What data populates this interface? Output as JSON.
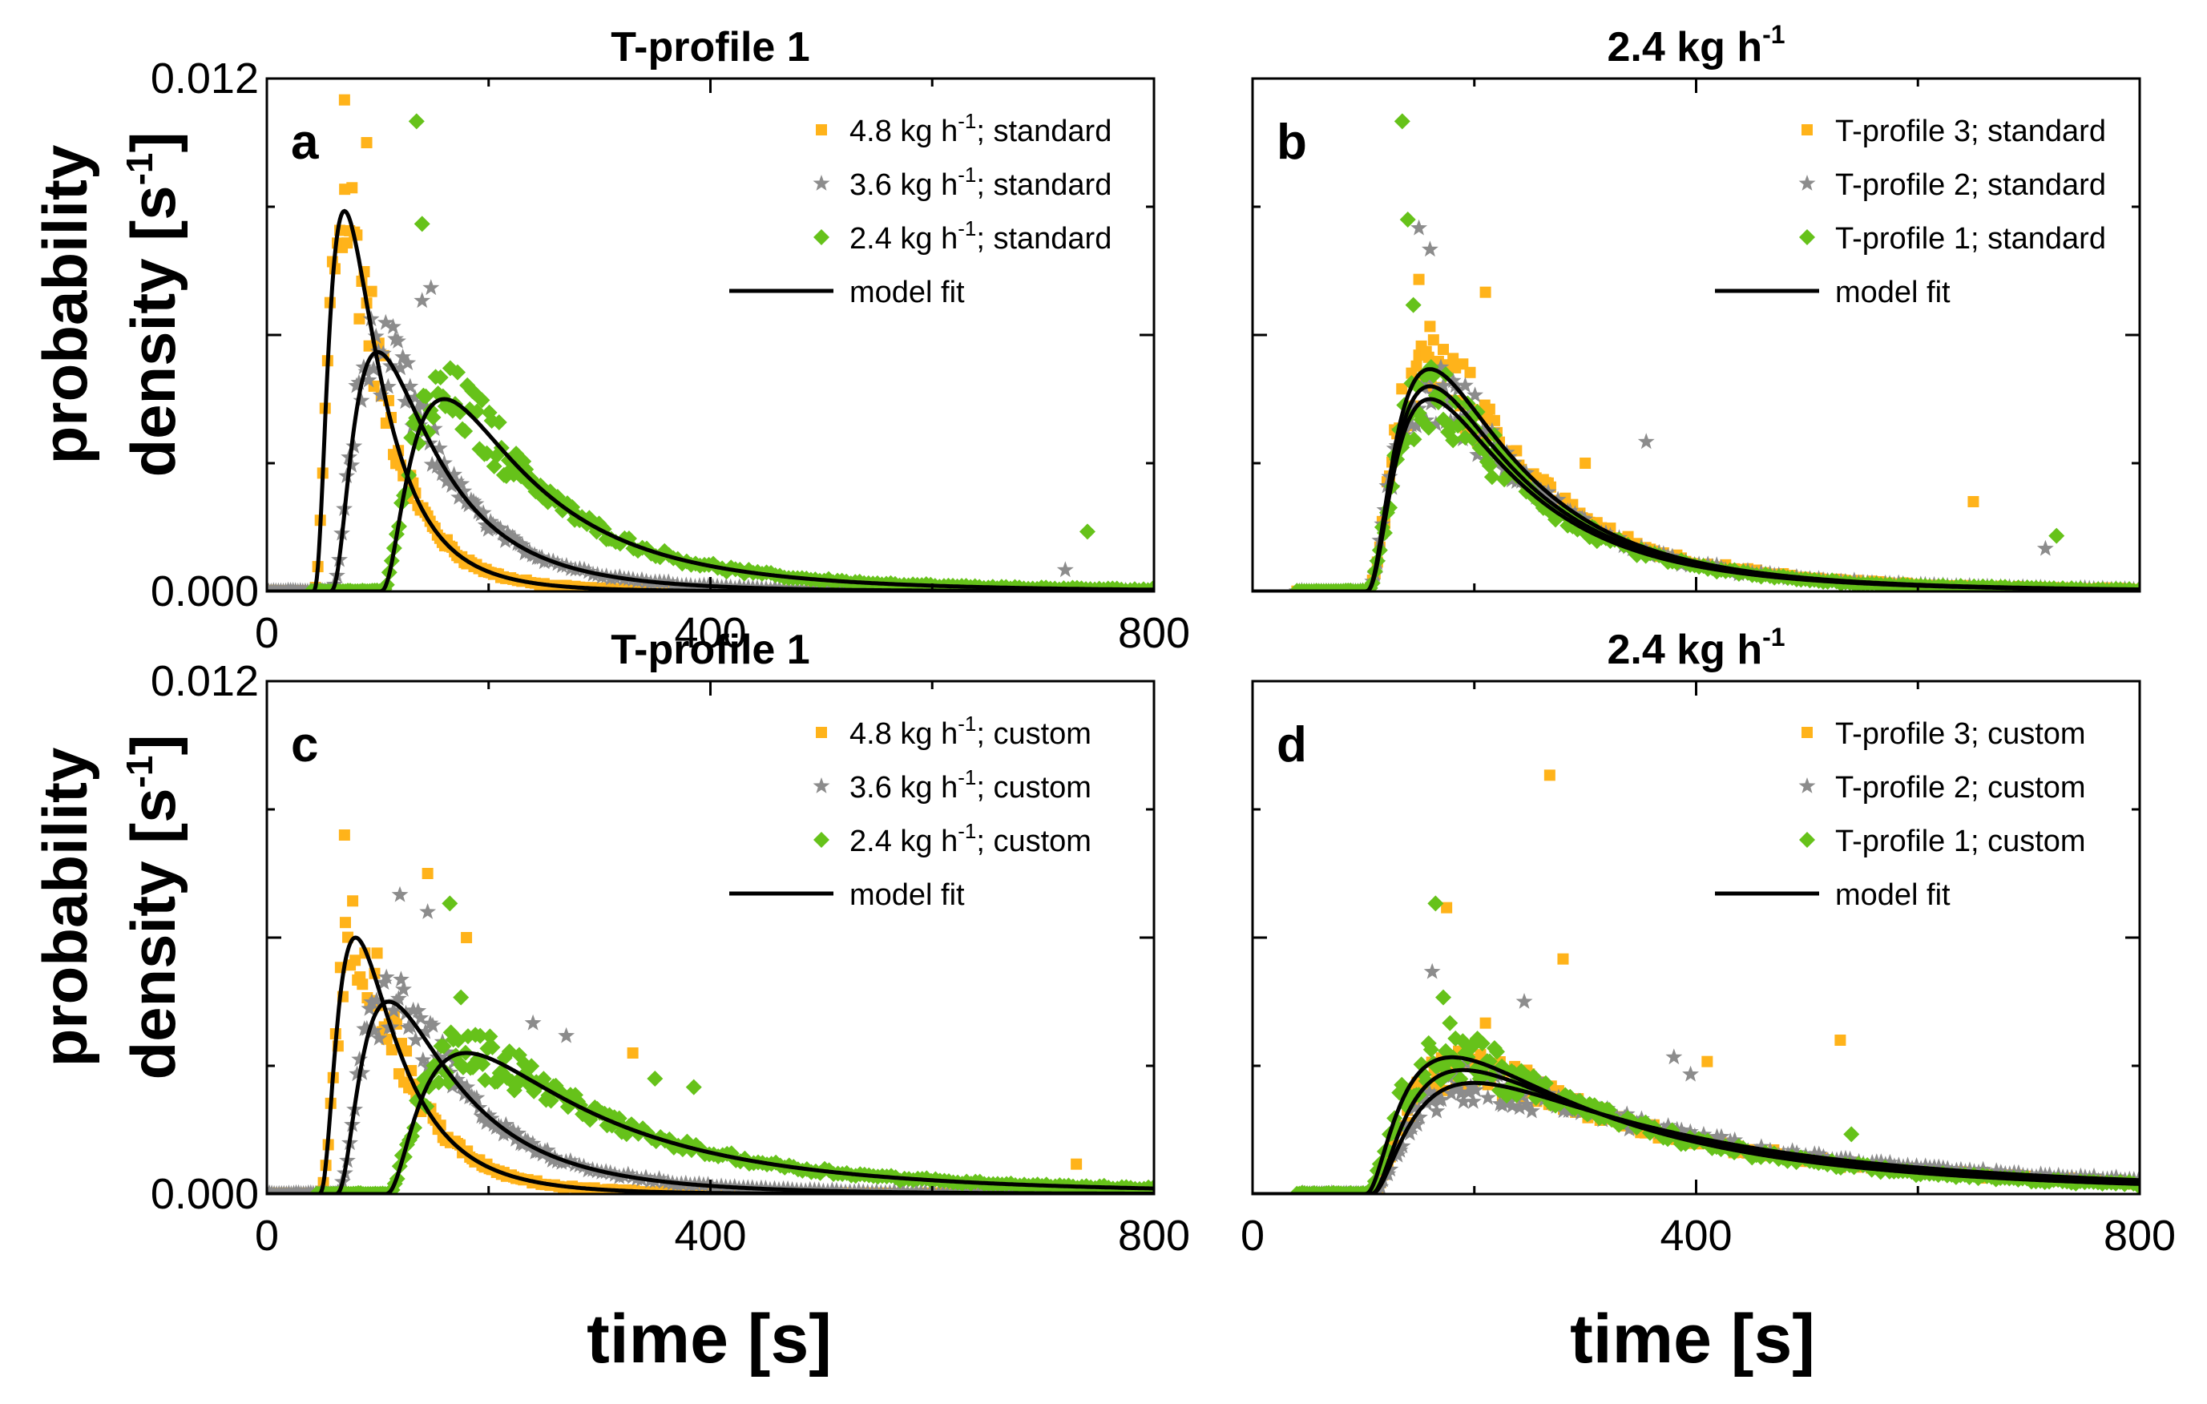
{
  "figure": {
    "y_label_line1": "probability",
    "y_label_line2_prefix": "density [s",
    "y_label_line2_sup": "-1",
    "y_label_line2_suffix": "]",
    "x_label": "time [s]"
  },
  "colors": {
    "series1": "#ffb31a",
    "series2": "#8c8c8c",
    "series3": "#66c21a",
    "fit": "#000000"
  },
  "chart_data": [
    {
      "type": "scatter",
      "panel": "a",
      "title": "T-profile 1",
      "title_sup": "",
      "xlabel": "time [s]",
      "ylabel": "probability density [s-1]",
      "xlim": [
        0,
        800
      ],
      "ylim": [
        0,
        0.012
      ],
      "x_ticks": [
        "0",
        "400",
        "800"
      ],
      "y_ticks": [
        "0.000",
        "0.012"
      ],
      "legend_position": "top-right",
      "fit_label": "model fit",
      "series": [
        {
          "name": "4.8 kg h-1; standard",
          "name_pre": "4.8 kg h",
          "name_sup": "-1",
          "name_post": "; standard",
          "marker": "square",
          "color": "#ffb31a",
          "t0": 40,
          "peak_t": 70,
          "peak_y": 0.0089,
          "decay": 110,
          "max_noise": 0.0115,
          "outliers": [
            [
              70,
              0.0115
            ],
            [
              90,
              0.0105
            ]
          ]
        },
        {
          "name": "3.6 kg h-1; standard",
          "name_pre": "3.6 kg h",
          "name_sup": "-1",
          "name_post": "; standard",
          "marker": "star",
          "color": "#8c8c8c",
          "t0": 55,
          "peak_t": 100,
          "peak_y": 0.0056,
          "decay": 150,
          "outliers": [
            [
              148,
              0.0071
            ],
            [
              140,
              0.0068
            ],
            [
              720,
              0.0005
            ]
          ]
        },
        {
          "name": "2.4 kg h-1; standard",
          "name_pre": "2.4 kg h",
          "name_sup": "-1",
          "name_post": "; standard",
          "marker": "diamond",
          "color": "#66c21a",
          "t0": 100,
          "peak_t": 160,
          "peak_y": 0.0045,
          "decay": 200,
          "outliers": [
            [
              135,
              0.011
            ],
            [
              140,
              0.0086
            ],
            [
              740,
              0.0014
            ]
          ]
        }
      ]
    },
    {
      "type": "scatter",
      "panel": "b",
      "title": "2.4 kg h",
      "title_sup": "-1",
      "xlabel": "time [s]",
      "ylabel": "probability density [s-1]",
      "xlim": [
        0,
        800
      ],
      "ylim": [
        0,
        0.012
      ],
      "x_ticks": [
        "",
        "",
        ""
      ],
      "y_ticks": [
        "",
        ""
      ],
      "legend_position": "top-right",
      "fit_label": "model fit",
      "series": [
        {
          "name": "T-profile 3; standard",
          "name_pre": "T-profile 3; standard",
          "name_sup": "",
          "name_post": "",
          "marker": "square",
          "color": "#ffb31a",
          "t0": 100,
          "peak_t": 160,
          "peak_y": 0.0052,
          "decay": 200,
          "outliers": [
            [
              150,
              0.0073
            ],
            [
              160,
              0.0062
            ],
            [
              210,
              0.007
            ],
            [
              650,
              0.0021
            ],
            [
              300,
              0.003
            ]
          ]
        },
        {
          "name": "T-profile 2; standard",
          "name_pre": "T-profile 2; standard",
          "name_sup": "",
          "name_post": "",
          "marker": "star",
          "color": "#8c8c8c",
          "t0": 100,
          "peak_t": 160,
          "peak_y": 0.0048,
          "decay": 200,
          "outliers": [
            [
              150,
              0.0085
            ],
            [
              160,
              0.008
            ],
            [
              355,
              0.0035
            ],
            [
              715,
              0.001
            ]
          ]
        },
        {
          "name": "T-profile 1; standard",
          "name_pre": "T-profile 1; standard",
          "name_sup": "",
          "name_post": "",
          "marker": "diamond",
          "color": "#66c21a",
          "t0": 100,
          "peak_t": 160,
          "peak_y": 0.0045,
          "decay": 200,
          "outliers": [
            [
              135,
              0.011
            ],
            [
              140,
              0.0087
            ],
            [
              145,
              0.0067
            ],
            [
              725,
              0.0013
            ]
          ]
        }
      ]
    },
    {
      "type": "scatter",
      "panel": "c",
      "title": "T-profile 1",
      "title_sup": "",
      "xlabel": "time [s]",
      "ylabel": "probability density [s-1]",
      "xlim": [
        0,
        800
      ],
      "ylim": [
        0,
        0.012
      ],
      "x_ticks": [
        "0",
        "400",
        "800"
      ],
      "y_ticks": [
        "0.000",
        "0.012"
      ],
      "legend_position": "top-right",
      "fit_label": "model fit",
      "series": [
        {
          "name": "4.8 kg h-1; custom",
          "name_pre": "4.8 kg h",
          "name_sup": "-1",
          "name_post": "; custom",
          "marker": "square",
          "color": "#ffb31a",
          "t0": 45,
          "peak_t": 80,
          "peak_y": 0.006,
          "decay": 120,
          "outliers": [
            [
              70,
              0.0084
            ],
            [
              145,
              0.0075
            ],
            [
              180,
              0.006
            ],
            [
              330,
              0.0033
            ],
            [
              730,
              0.0007
            ]
          ]
        },
        {
          "name": "3.6 kg h-1; custom",
          "name_pre": "3.6 kg h",
          "name_sup": "-1",
          "name_post": "; custom",
          "marker": "star",
          "color": "#8c8c8c",
          "t0": 60,
          "peak_t": 110,
          "peak_y": 0.0045,
          "decay": 170,
          "outliers": [
            [
              120,
              0.007
            ],
            [
              145,
              0.0066
            ],
            [
              240,
              0.004
            ],
            [
              270,
              0.0037
            ]
          ]
        },
        {
          "name": "2.4 kg h-1; custom",
          "name_pre": "2.4 kg h",
          "name_sup": "-1",
          "name_post": "; custom",
          "marker": "diamond",
          "color": "#66c21a",
          "t0": 105,
          "peak_t": 180,
          "peak_y": 0.0033,
          "decay": 260,
          "outliers": [
            [
              165,
              0.0068
            ],
            [
              175,
              0.0046
            ],
            [
              350,
              0.0027
            ],
            [
              385,
              0.0025
            ]
          ]
        }
      ]
    },
    {
      "type": "scatter",
      "panel": "d",
      "title": "2.4 kg h",
      "title_sup": "-1",
      "xlabel": "time [s]",
      "ylabel": "probability density [s-1]",
      "xlim": [
        0,
        800
      ],
      "ylim": [
        0,
        0.012
      ],
      "x_ticks": [
        "0",
        "400",
        "800"
      ],
      "y_ticks": [
        "",
        ""
      ],
      "legend_position": "top-right",
      "fit_label": "model fit",
      "series": [
        {
          "name": "T-profile 3; custom",
          "name_pre": "T-profile 3; custom",
          "name_sup": "",
          "name_post": "",
          "marker": "square",
          "color": "#ffb31a",
          "t0": 105,
          "peak_t": 190,
          "peak_y": 0.0029,
          "decay": 330,
          "outliers": [
            [
              268,
              0.0098
            ],
            [
              175,
              0.0067
            ],
            [
              280,
              0.0055
            ],
            [
              210,
              0.004
            ],
            [
              410,
              0.0031
            ],
            [
              530,
              0.0036
            ]
          ]
        },
        {
          "name": "T-profile 2; custom",
          "name_pre": "T-profile 2; custom",
          "name_sup": "",
          "name_post": "",
          "marker": "star",
          "color": "#8c8c8c",
          "t0": 105,
          "peak_t": 200,
          "peak_y": 0.0026,
          "decay": 340,
          "outliers": [
            [
              162,
              0.0052
            ],
            [
              245,
              0.0045
            ],
            [
              380,
              0.0032
            ],
            [
              395,
              0.0028
            ]
          ]
        },
        {
          "name": "T-profile 1; custom",
          "name_pre": "T-profile 1; custom",
          "name_sup": "",
          "name_post": "",
          "marker": "diamond",
          "color": "#66c21a",
          "t0": 100,
          "peak_t": 180,
          "peak_y": 0.0032,
          "decay": 320,
          "outliers": [
            [
              165,
              0.0068
            ],
            [
              172,
              0.0046
            ],
            [
              178,
              0.004
            ],
            [
              540,
              0.0014
            ]
          ]
        }
      ]
    }
  ]
}
